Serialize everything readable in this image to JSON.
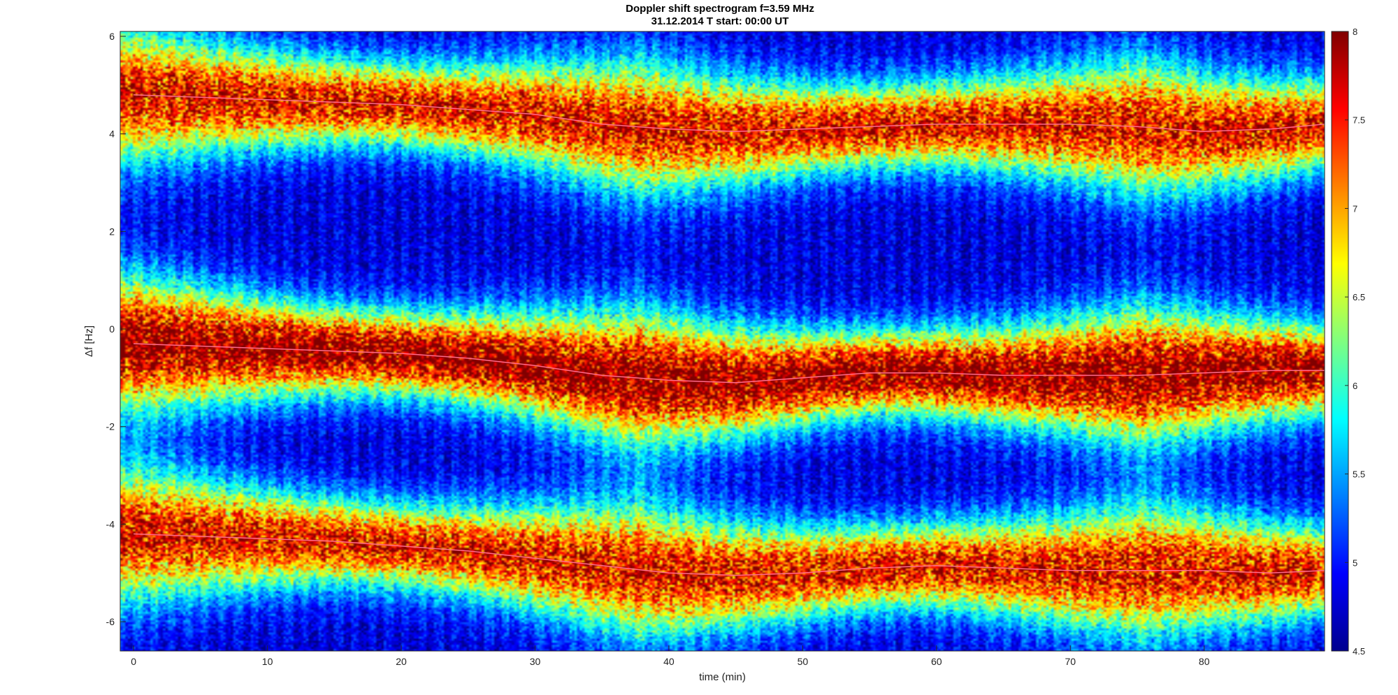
{
  "chart_data": {
    "type": "heatmap",
    "title": "Doppler shift spectrogram f=3.59 MHz",
    "subtitle": "31.12.2014   T start: 00:00 UT",
    "xlabel": "time (min)",
    "ylabel": "Δf [Hz]",
    "xlim": [
      -1,
      89
    ],
    "ylim": [
      -6.6,
      6.1
    ],
    "xticks": [
      0,
      10,
      20,
      30,
      40,
      50,
      60,
      70,
      80
    ],
    "yticks": [
      6,
      4,
      2,
      0,
      -2,
      -4,
      -6
    ],
    "colorbar": {
      "colormap": "jet",
      "range": [
        4.5,
        8
      ],
      "ticks": [
        8,
        7.5,
        7,
        6.5,
        6,
        5.5,
        5,
        4.5
      ]
    },
    "traces": [
      {
        "time": [
          0,
          5,
          10,
          15,
          20,
          25,
          30,
          35,
          40,
          45,
          50,
          55,
          60,
          65,
          70,
          75,
          80,
          85,
          89
        ],
        "df": [
          4.8,
          4.75,
          4.7,
          4.65,
          4.6,
          4.5,
          4.4,
          4.2,
          4.1,
          4.05,
          4.1,
          4.15,
          4.2,
          4.2,
          4.2,
          4.15,
          4.05,
          4.1,
          4.2
        ]
      },
      {
        "time": [
          0,
          5,
          10,
          15,
          20,
          25,
          30,
          35,
          40,
          45,
          50,
          55,
          60,
          65,
          70,
          75,
          80,
          85,
          89
        ],
        "df": [
          -0.3,
          -0.35,
          -0.4,
          -0.45,
          -0.5,
          -0.6,
          -0.75,
          -0.95,
          -1.05,
          -1.1,
          -1.0,
          -0.9,
          -0.9,
          -0.95,
          -0.95,
          -0.95,
          -0.9,
          -0.85,
          -0.85
        ]
      },
      {
        "time": [
          0,
          5,
          10,
          15,
          20,
          25,
          30,
          35,
          40,
          45,
          50,
          55,
          60,
          65,
          70,
          75,
          80,
          85,
          89
        ],
        "df": [
          -4.2,
          -4.25,
          -4.3,
          -4.35,
          -4.45,
          -4.55,
          -4.7,
          -4.85,
          -5.0,
          -5.05,
          -5.0,
          -4.9,
          -4.85,
          -4.9,
          -4.95,
          -4.95,
          -4.95,
          -5.0,
          -4.95
        ]
      }
    ]
  }
}
